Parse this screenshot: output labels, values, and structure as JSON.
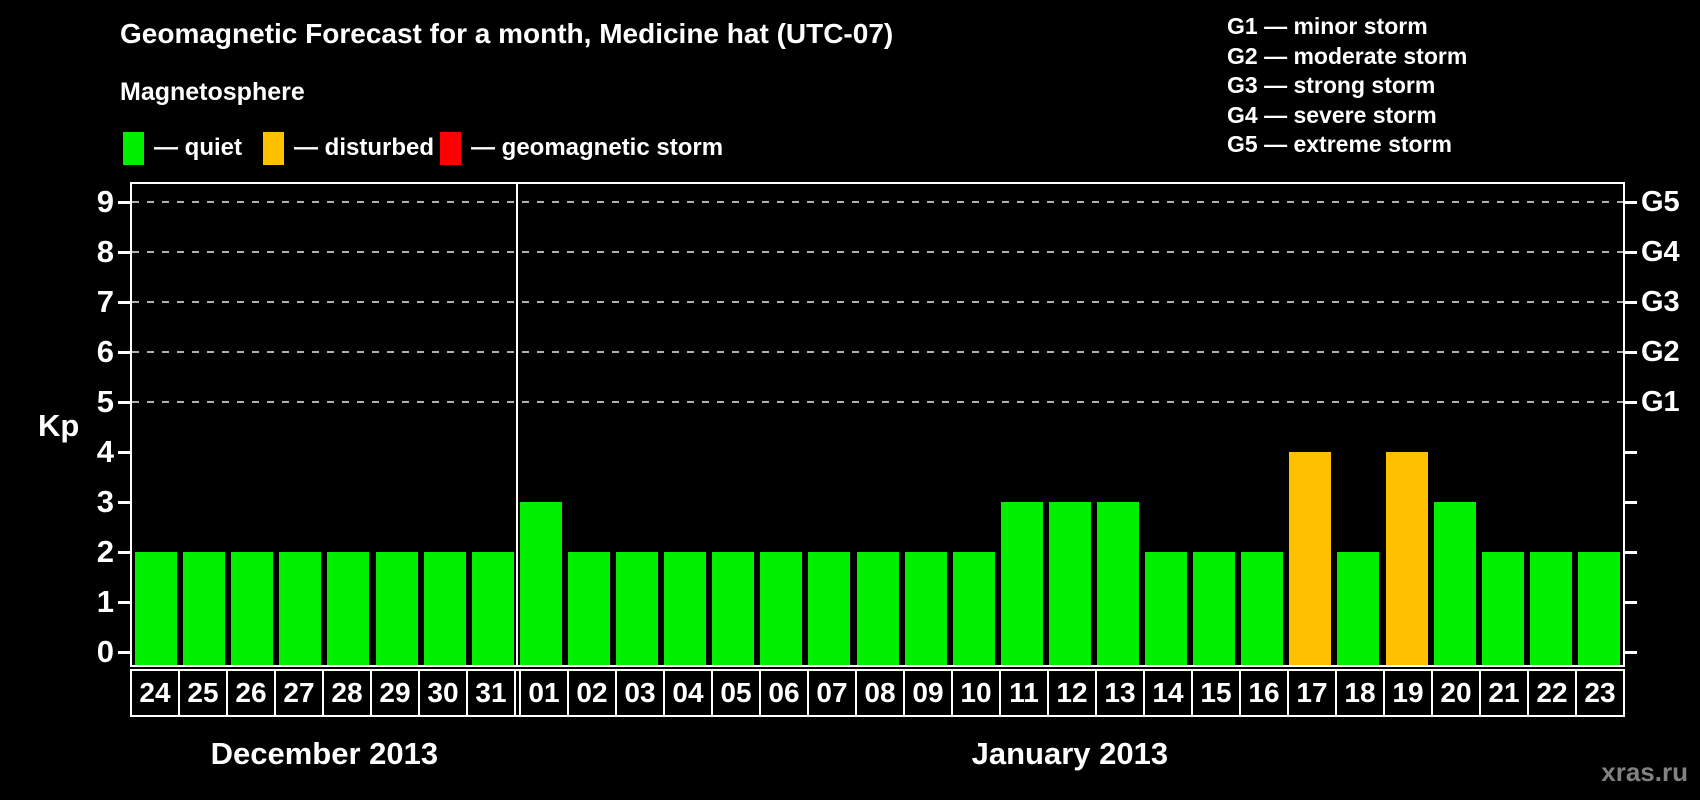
{
  "title": "Geomagnetic Forecast for a month, Medicine hat (UTC-07)",
  "subtitle": "Magnetosphere",
  "legend": [
    {
      "name": "quiet",
      "label": "— quiet",
      "color": "#00f000"
    },
    {
      "name": "disturbed",
      "label": "— disturbed",
      "color": "#ffc000"
    },
    {
      "name": "storm",
      "label": "— geomagnetic storm",
      "color": "#ff0000"
    }
  ],
  "storm_scale": [
    "G1 — minor storm",
    "G2 — moderate storm",
    "G3 — strong storm",
    "G4 — severe storm",
    "G5 — extreme storm"
  ],
  "watermark": "xras.ru",
  "chart_data": {
    "type": "bar",
    "title": "Geomagnetic Forecast for a month, Medicine hat (UTC-07)",
    "ylabel": "Kp",
    "ylim": [
      0,
      9
    ],
    "yticks": [
      0,
      1,
      2,
      3,
      4,
      5,
      6,
      7,
      8,
      9
    ],
    "gridlines_kp": [
      5,
      6,
      7,
      8,
      9
    ],
    "grid": "dashed, horizontal, at G-storm levels only",
    "legend_position": "top",
    "right_axis": [
      {
        "label": "G1",
        "kp": 5
      },
      {
        "label": "G2",
        "kp": 6
      },
      {
        "label": "G3",
        "kp": 7
      },
      {
        "label": "G4",
        "kp": 8
      },
      {
        "label": "G5",
        "kp": 9
      }
    ],
    "colors": {
      "quiet": "#00f000",
      "disturbed": "#ffc000",
      "storm": "#ff0000"
    },
    "months": [
      {
        "label": "December 2013",
        "days": [
          {
            "day": "24",
            "kp": 2,
            "status": "quiet"
          },
          {
            "day": "25",
            "kp": 2,
            "status": "quiet"
          },
          {
            "day": "26",
            "kp": 2,
            "status": "quiet"
          },
          {
            "day": "27",
            "kp": 2,
            "status": "quiet"
          },
          {
            "day": "28",
            "kp": 2,
            "status": "quiet"
          },
          {
            "day": "29",
            "kp": 2,
            "status": "quiet"
          },
          {
            "day": "30",
            "kp": 2,
            "status": "quiet"
          },
          {
            "day": "31",
            "kp": 2,
            "status": "quiet"
          }
        ]
      },
      {
        "label": "January 2013",
        "days": [
          {
            "day": "01",
            "kp": 3,
            "status": "quiet"
          },
          {
            "day": "02",
            "kp": 2,
            "status": "quiet"
          },
          {
            "day": "03",
            "kp": 2,
            "status": "quiet"
          },
          {
            "day": "04",
            "kp": 2,
            "status": "quiet"
          },
          {
            "day": "05",
            "kp": 2,
            "status": "quiet"
          },
          {
            "day": "06",
            "kp": 2,
            "status": "quiet"
          },
          {
            "day": "07",
            "kp": 2,
            "status": "quiet"
          },
          {
            "day": "08",
            "kp": 2,
            "status": "quiet"
          },
          {
            "day": "09",
            "kp": 2,
            "status": "quiet"
          },
          {
            "day": "10",
            "kp": 2,
            "status": "quiet"
          },
          {
            "day": "11",
            "kp": 3,
            "status": "quiet"
          },
          {
            "day": "12",
            "kp": 3,
            "status": "quiet"
          },
          {
            "day": "13",
            "kp": 3,
            "status": "quiet"
          },
          {
            "day": "14",
            "kp": 2,
            "status": "quiet"
          },
          {
            "day": "15",
            "kp": 2,
            "status": "quiet"
          },
          {
            "day": "16",
            "kp": 2,
            "status": "quiet"
          },
          {
            "day": "17",
            "kp": 4,
            "status": "disturbed"
          },
          {
            "day": "18",
            "kp": 2,
            "status": "quiet"
          },
          {
            "day": "19",
            "kp": 4,
            "status": "disturbed"
          },
          {
            "day": "20",
            "kp": 3,
            "status": "quiet"
          },
          {
            "day": "21",
            "kp": 2,
            "status": "quiet"
          },
          {
            "day": "22",
            "kp": 2,
            "status": "quiet"
          },
          {
            "day": "23",
            "kp": 2,
            "status": "quiet"
          }
        ]
      }
    ]
  }
}
